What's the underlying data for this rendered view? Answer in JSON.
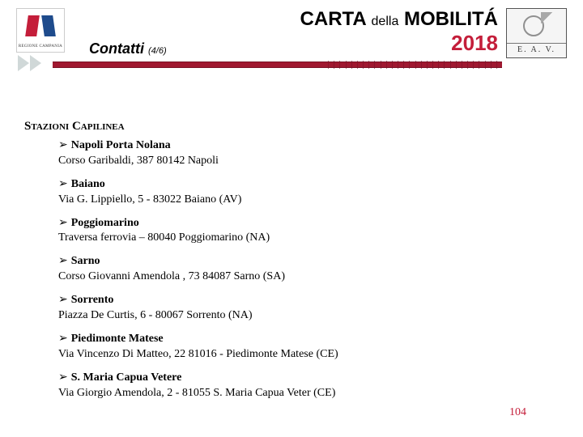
{
  "header": {
    "logo_left_caption": "REGIONE CAMPANIA",
    "title_part1": "CARTA",
    "title_della": "della",
    "title_part2": "MOBILITÁ",
    "year": "2018",
    "logo_right_caption": "E. A. V.",
    "subtitle": "Contatti",
    "subtitle_page": "(4/6)",
    "colors": {
      "accent_red": "#c41e3a",
      "bar_red": "#a01830",
      "text": "#000000",
      "background": "#ffffff"
    }
  },
  "section_title": "Stazioni Capilinea",
  "stations": [
    {
      "name": "Napoli Porta Nolana",
      "address": "Corso Garibaldi, 387 80142 Napoli"
    },
    {
      "name": "Baiano",
      "address": "Via G. Lippiello, 5 - 83022 Baiano (AV)"
    },
    {
      "name": "Poggiomarino",
      "address": "Traversa ferrovia – 80040 Poggiomarino (NA)"
    },
    {
      "name": "Sarno",
      "address": "Corso Giovanni Amendola , 73  84087 Sarno (SA)"
    },
    {
      "name": "Sorrento",
      "address": "Piazza De Curtis, 6 - 80067 Sorrento (NA)"
    },
    {
      "name": "Piedimonte Matese",
      "address": "Via Vincenzo Di Matteo, 22 81016 - Piedimonte Matese (CE)"
    },
    {
      "name": "S. Maria Capua Vetere",
      "address": "Via Giorgio Amendola, 2  - 81055 S. Maria Capua Veter (CE)"
    }
  ],
  "page_number": "104"
}
